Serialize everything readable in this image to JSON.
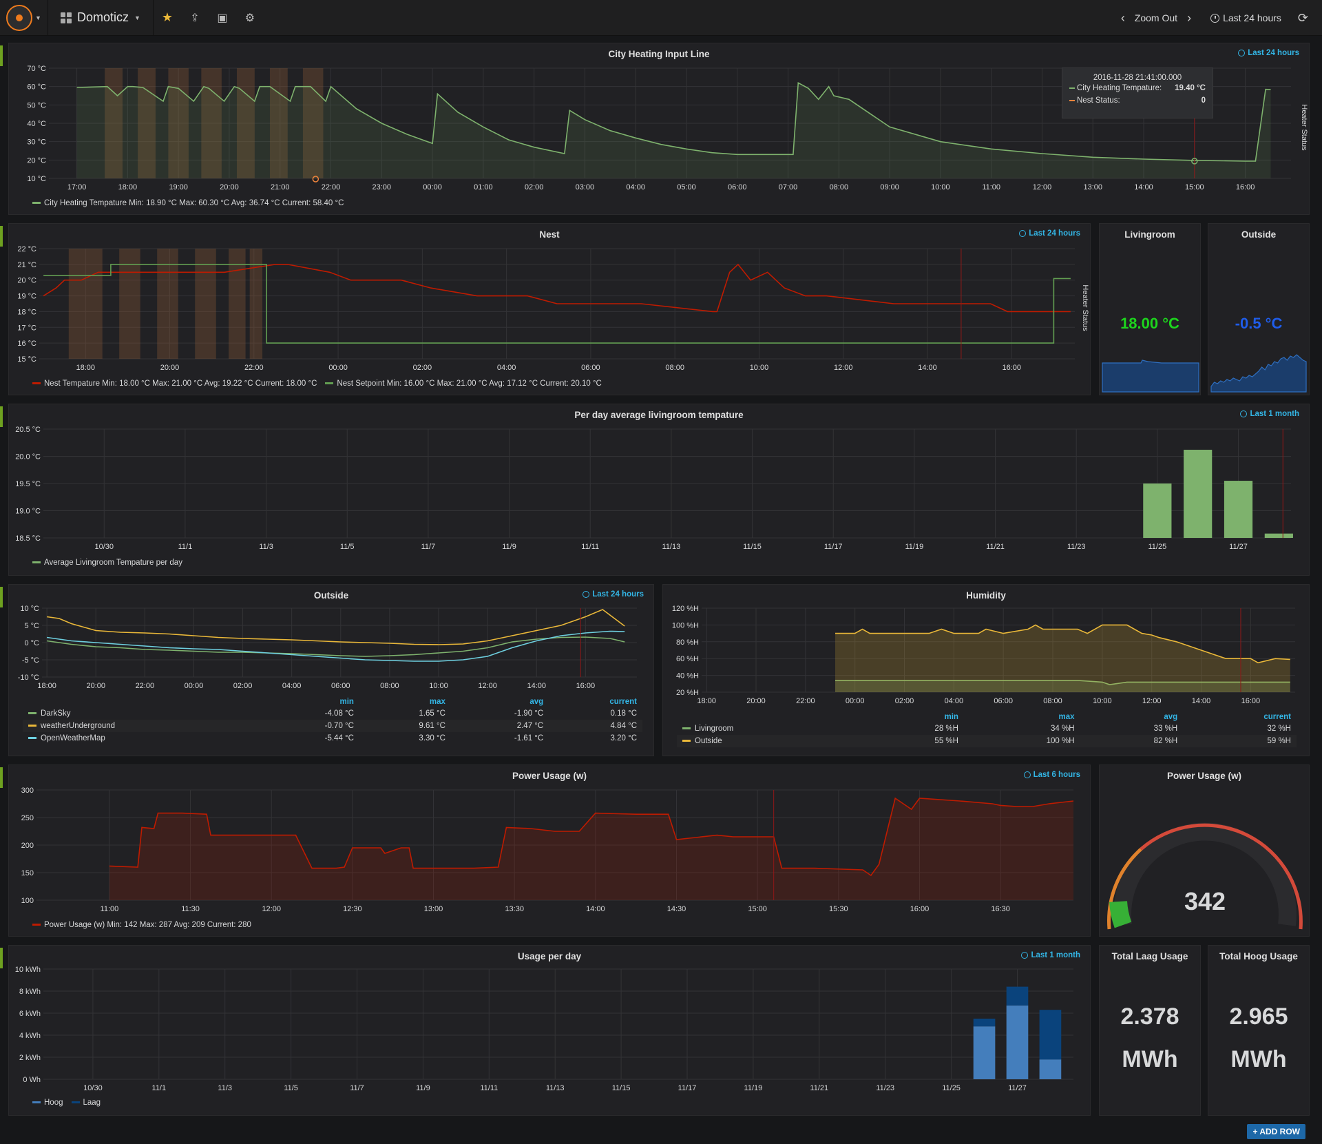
{
  "navbar": {
    "dashboard_title": "Domoticz",
    "zoom_out": "Zoom Out",
    "time_range": "Last 24 hours"
  },
  "panels": {
    "city_heating": {
      "title": "City Heating Input Line",
      "time_info": "Last 24 hours",
      "right_axis_label": "Heater Status",
      "legend": "City Heating Tempature  Min: 18.90 °C  Max: 60.30 °C  Avg: 36.74 °C  Current: 58.40 °C",
      "tooltip": {
        "time": "2016-11-28 21:41:00.000",
        "series1_name": "City Heating Tempature:",
        "series1_value": "19.40 °C",
        "series2_name": "Nest Status:",
        "series2_value": "0"
      }
    },
    "nest": {
      "title": "Nest",
      "time_info": "Last 24 hours",
      "right_axis_label": "Heater Status",
      "legend1": "Nest Tempature  Min: 18.00 °C  Max: 21.00 °C  Avg: 19.22 °C  Current: 18.00 °C",
      "legend2": "Nest Setpoint  Min: 16.00 °C  Max: 21.00 °C  Avg: 17.12 °C  Current: 20.10 °C"
    },
    "livingroom": {
      "title": "Livingroom",
      "value": "18.00 °C",
      "color": "#1dd51d"
    },
    "outside_stat": {
      "title": "Outside",
      "value": "-0.5 °C",
      "color": "#1f5dea"
    },
    "per_day_avg": {
      "title": "Per day average livingroom tempature",
      "time_info": "Last 1 month",
      "legend": "Average Livingroom Tempature per day"
    },
    "outside_graph": {
      "title": "Outside",
      "time_info": "Last 24 hours",
      "headers": [
        "min",
        "max",
        "avg",
        "current"
      ],
      "rows": [
        {
          "name": "DarkSky",
          "color": "#7eb26d",
          "min": "-4.08 °C",
          "max": "1.65 °C",
          "avg": "-1.90 °C",
          "current": "0.18 °C"
        },
        {
          "name": "weatherUnderground",
          "color": "#eab839",
          "min": "-0.70 °C",
          "max": "9.61 °C",
          "avg": "2.47 °C",
          "current": "4.84 °C"
        },
        {
          "name": "OpenWeatherMap",
          "color": "#6ed0e0",
          "min": "-5.44 °C",
          "max": "3.30 °C",
          "avg": "-1.61 °C",
          "current": "3.20 °C"
        }
      ]
    },
    "humidity": {
      "title": "Humidity",
      "headers": [
        "min",
        "max",
        "avg",
        "current"
      ],
      "rows": [
        {
          "name": "Livingroom",
          "color": "#7eb26d",
          "min": "28 %H",
          "max": "34 %H",
          "avg": "33 %H",
          "current": "32 %H"
        },
        {
          "name": "Outside",
          "color": "#eab839",
          "min": "55 %H",
          "max": "100 %H",
          "avg": "82 %H",
          "current": "59 %H"
        }
      ]
    },
    "power": {
      "title": "Power Usage (w)",
      "time_info": "Last 6 hours",
      "legend": "Power Usage (w)  Min: 142  Max: 287  Avg: 209  Current: 280"
    },
    "power_gauge": {
      "title": "Power Usage (w)",
      "value": "342"
    },
    "usage_per_day": {
      "title": "Usage per day",
      "time_info": "Last 1 month",
      "legend1": "Hoog",
      "legend2": "Laag"
    },
    "total_laag": {
      "title": "Total Laag Usage",
      "value": "2.378",
      "unit": "MWh"
    },
    "total_hoog": {
      "title": "Total Hoog Usage",
      "value": "2.965",
      "unit": "MWh"
    }
  },
  "add_row": "+ ADD ROW",
  "chart_data": [
    {
      "type": "line",
      "title": "City Heating Input Line",
      "ylabel": "",
      "yticks": [
        "10 °C",
        "20 °C",
        "30 °C",
        "40 °C",
        "50 °C",
        "60 °C",
        "70 °C"
      ],
      "xticks": [
        "17:00",
        "18:00",
        "19:00",
        "20:00",
        "21:00",
        "22:00",
        "23:00",
        "00:00",
        "01:00",
        "02:00",
        "03:00",
        "04:00",
        "05:00",
        "06:00",
        "07:00",
        "08:00",
        "09:00",
        "10:00",
        "11:00",
        "12:00",
        "13:00",
        "14:00",
        "15:00",
        "16:00"
      ],
      "ylim": [
        10,
        70
      ],
      "series": [
        {
          "name": "City Heating Tempature",
          "color": "#7eb26d",
          "x": [
            0,
            0.6,
            0.8,
            1.0,
            1.1,
            1.3,
            1.7,
            1.8,
            2.0,
            2.3,
            2.5,
            2.6,
            2.9,
            3.1,
            3.2,
            3.5,
            3.6,
            3.8,
            4.2,
            4.3,
            4.4,
            4.6,
            4.9,
            5.0,
            5.5,
            6.0,
            6.5,
            7.0,
            7.1,
            7.5,
            8.0,
            8.5,
            9.0,
            9.6,
            9.7,
            10.0,
            10.5,
            11.0,
            11.5,
            12.0,
            12.5,
            13.0,
            13.5,
            14.1,
            14.2,
            14.4,
            14.6,
            14.8,
            14.9,
            15.2,
            16.0,
            17.0,
            18.0,
            19.0,
            20.0,
            21.0,
            22.0,
            23.0,
            23.2,
            23.4,
            23.5
          ],
          "y": [
            59.5,
            60,
            55,
            60,
            60,
            59.5,
            52,
            60,
            59,
            52,
            60,
            59,
            52,
            60,
            59,
            52,
            60,
            60,
            52,
            60,
            60,
            60,
            52,
            60,
            48,
            40,
            34,
            29,
            56,
            46,
            38,
            31,
            27,
            23.5,
            47,
            42,
            36,
            32,
            28.5,
            26,
            24,
            23,
            23,
            23,
            62,
            59,
            53,
            60,
            55,
            53,
            38,
            30,
            26,
            23.5,
            21.5,
            20.5,
            19.8,
            19.4,
            19.4,
            58.5,
            58.4
          ]
        }
      ]
    },
    {
      "type": "line",
      "title": "Nest",
      "ylabel": "",
      "yticks": [
        "15 °C",
        "16 °C",
        "17 °C",
        "18 °C",
        "19 °C",
        "20 °C",
        "21 °C",
        "22 °C"
      ],
      "xticks": [
        "18:00",
        "20:00",
        "22:00",
        "00:00",
        "02:00",
        "04:00",
        "06:00",
        "08:00",
        "10:00",
        "12:00",
        "14:00",
        "16:00"
      ],
      "ylim": [
        15,
        22
      ],
      "series": [
        {
          "name": "Nest Tempature",
          "color": "#bf1b00",
          "x": [
            0,
            0.3,
            0.5,
            0.9,
            1.3,
            1.8,
            3.0,
            4.3,
            5.5,
            5.8,
            6.8,
            7.3,
            8.5,
            9.2,
            10.3,
            11.5,
            12.2,
            14.2,
            15.9,
            16.0,
            16.3,
            16.5,
            16.8,
            17.2,
            17.6,
            18.1,
            18.6,
            20.2,
            20.6,
            22.5,
            22.9,
            24.4
          ],
          "y": [
            19,
            19.5,
            20,
            20,
            20.5,
            20.5,
            20.5,
            20.5,
            21,
            21,
            20.5,
            20,
            20,
            19.5,
            19,
            19,
            18.5,
            18.5,
            18,
            18,
            20.5,
            21,
            20,
            20.5,
            19.5,
            19,
            19,
            18.5,
            18.5,
            18.5,
            18,
            18
          ]
        },
        {
          "name": "Nest Setpoint",
          "color": "#629e51",
          "x": [
            0,
            1.6,
            1.6,
            5.3,
            5.3,
            24.0,
            24.0,
            24.4
          ],
          "y": [
            20.3,
            20.3,
            21,
            21,
            16,
            16,
            20.1,
            20.1
          ]
        }
      ]
    },
    {
      "type": "bar",
      "title": "Per day average livingroom tempature",
      "xticks": [
        "10/30",
        "11/1",
        "11/3",
        "11/5",
        "11/7",
        "11/9",
        "11/11",
        "11/13",
        "11/15",
        "11/17",
        "11/19",
        "11/21",
        "11/23",
        "11/25",
        "11/27"
      ],
      "yticks": [
        "18.5 °C",
        "19.0 °C",
        "19.5 °C",
        "20.0 °C",
        "20.5 °C"
      ],
      "ylim": [
        18.5,
        20.5
      ],
      "categories": [
        "11/25",
        "11/26",
        "11/27",
        "11/28"
      ],
      "series": [
        {
          "name": "Average Livingroom Tempature per day",
          "color": "#7eb26d",
          "values": [
            19.5,
            20.12,
            19.55,
            18.58
          ]
        }
      ]
    },
    {
      "type": "line",
      "title": "Outside",
      "yticks": [
        "-10 °C",
        "-5 °C",
        "0 °C",
        "5 °C",
        "10 °C"
      ],
      "xticks": [
        "18:00",
        "20:00",
        "22:00",
        "00:00",
        "02:00",
        "04:00",
        "06:00",
        "08:00",
        "10:00",
        "12:00",
        "14:00",
        "16:00"
      ],
      "ylim": [
        -10,
        10
      ],
      "series": [
        {
          "name": "DarkSky",
          "color": "#7eb26d",
          "x": [
            0,
            1,
            2,
            3,
            4,
            5,
            6,
            7,
            8,
            9,
            10,
            11,
            12,
            13,
            14,
            15,
            16,
            17,
            18,
            19,
            20,
            21,
            22,
            23,
            23.6
          ],
          "y": [
            0.5,
            -0.5,
            -1.2,
            -1.5,
            -2.0,
            -2.2,
            -2.5,
            -2.8,
            -2.8,
            -3.0,
            -3.2,
            -3.5,
            -3.8,
            -4.0,
            -3.8,
            -3.5,
            -3.0,
            -2.5,
            -1.5,
            0.2,
            1.0,
            1.5,
            1.6,
            1.2,
            0.2
          ]
        },
        {
          "name": "weatherUnderground",
          "color": "#eab839",
          "x": [
            0,
            0.5,
            1,
            1.5,
            2,
            3,
            4,
            5,
            6,
            7,
            8,
            9,
            10,
            11,
            12,
            13,
            14,
            15,
            16,
            17,
            18,
            19,
            20,
            21,
            22,
            22.7,
            23.6
          ],
          "y": [
            7.5,
            7.0,
            5.5,
            4.5,
            3.5,
            3.0,
            2.8,
            2.5,
            2.0,
            1.5,
            1.2,
            1.0,
            0.8,
            0.5,
            0.2,
            0.0,
            -0.2,
            -0.5,
            -0.6,
            -0.4,
            0.5,
            2.0,
            3.5,
            5.0,
            7.5,
            9.6,
            4.8
          ]
        },
        {
          "name": "OpenWeatherMap",
          "color": "#6ed0e0",
          "x": [
            0,
            1,
            2,
            3,
            4,
            5,
            6,
            7,
            8,
            9,
            10,
            11,
            12,
            13,
            14,
            15,
            16,
            17,
            18,
            19,
            20,
            21,
            22,
            23,
            23.6
          ],
          "y": [
            1.5,
            0.5,
            0.0,
            -0.5,
            -1.0,
            -1.5,
            -1.8,
            -2.0,
            -2.5,
            -3.0,
            -3.5,
            -4.0,
            -4.5,
            -5.0,
            -5.2,
            -5.4,
            -5.4,
            -5.0,
            -4.0,
            -1.5,
            0.5,
            2.0,
            2.8,
            3.3,
            3.2
          ]
        }
      ]
    },
    {
      "type": "area",
      "title": "Humidity",
      "yticks": [
        "20 %H",
        "40 %H",
        "60 %H",
        "80 %H",
        "100 %H",
        "120 %H"
      ],
      "xticks": [
        "18:00",
        "20:00",
        "22:00",
        "00:00",
        "02:00",
        "04:00",
        "06:00",
        "08:00",
        "10:00",
        "12:00",
        "14:00",
        "16:00"
      ],
      "ylim": [
        20,
        120
      ],
      "series": [
        {
          "name": "Livingroom",
          "color": "#7eb26d",
          "x": [
            5.2,
            8,
            10,
            12,
            15,
            16.0,
            16.3,
            17.0,
            18,
            20,
            22,
            23.6
          ],
          "y": [
            34,
            34,
            34,
            34,
            34,
            32,
            29,
            32,
            32,
            32,
            32,
            32
          ]
        },
        {
          "name": "Outside",
          "color": "#eab839",
          "x": [
            5.2,
            6,
            6.3,
            6.6,
            8,
            9,
            9.5,
            10,
            11,
            11.3,
            12,
            13,
            13.3,
            13.6,
            15,
            15.4,
            16,
            17,
            17.3,
            17.6,
            18,
            18.3,
            19,
            19.5,
            20,
            21,
            22,
            22.3,
            23,
            23.6
          ],
          "y": [
            90,
            90,
            95,
            90,
            90,
            90,
            95,
            90,
            90,
            95,
            90,
            95,
            100,
            95,
            95,
            90,
            100,
            100,
            95,
            90,
            88,
            85,
            80,
            75,
            70,
            60,
            60,
            55,
            60,
            59
          ]
        }
      ]
    },
    {
      "type": "area",
      "title": "Power Usage (w)",
      "yticks": [
        "100",
        "150",
        "200",
        "250",
        "300"
      ],
      "xticks": [
        "11:00",
        "11:30",
        "12:00",
        "12:30",
        "13:00",
        "13:30",
        "14:00",
        "14:30",
        "15:00",
        "15:30",
        "16:00",
        "16:30"
      ],
      "ylim": [
        100,
        300
      ],
      "series": [
        {
          "name": "Power Usage (w)",
          "color": "#bf1b00",
          "x": [
            0,
            0.35,
            0.4,
            0.55,
            0.6,
            0.9,
            1.2,
            1.25,
            1.8,
            1.9,
            2.0,
            2.2,
            2.3,
            2.5,
            2.6,
            2.8,
            2.9,
            3.0,
            3.2,
            3.35,
            3.4,
            3.6,
            3.7,
            3.75,
            4.0,
            4.5,
            4.8,
            4.9,
            5.2,
            5.5,
            5.8,
            6.0,
            6.5,
            6.9,
            7.0,
            7.5,
            7.7,
            7.9,
            8.2,
            8.3,
            8.6,
            8.7,
            9.3,
            9.4,
            9.5,
            9.7,
            9.9,
            10.0,
            10.5,
            10.9,
            11.0,
            11.2,
            11.4,
            11.6,
            11.9
          ],
          "y": [
            162,
            160,
            232,
            230,
            258,
            258,
            256,
            218,
            218,
            218,
            218,
            218,
            218,
            158,
            158,
            158,
            160,
            195,
            195,
            195,
            185,
            195,
            195,
            158,
            158,
            158,
            160,
            232,
            230,
            225,
            225,
            258,
            256,
            256,
            210,
            218,
            215,
            215,
            215,
            158,
            158,
            158,
            155,
            145,
            165,
            285,
            265,
            285,
            280,
            275,
            272,
            270,
            270,
            275,
            280
          ]
        }
      ]
    },
    {
      "type": "bar",
      "title": "Usage per day",
      "yticks": [
        "0 Wh",
        "2 kWh",
        "4 kWh",
        "6 kWh",
        "8 kWh",
        "10 kWh"
      ],
      "xticks": [
        "10/30",
        "11/1",
        "11/3",
        "11/5",
        "11/7",
        "11/9",
        "11/11",
        "11/13",
        "11/15",
        "11/17",
        "11/19",
        "11/21",
        "11/23",
        "11/25",
        "11/27"
      ],
      "ylim": [
        0,
        10
      ],
      "categories": [
        "11/26",
        "11/27",
        "11/28"
      ],
      "series": [
        {
          "name": "Hoog",
          "color": "#447ebc",
          "values": [
            4.8,
            6.7,
            1.8
          ]
        },
        {
          "name": "Laag",
          "color": "#0a437c",
          "values": [
            0.7,
            1.7,
            4.5
          ]
        }
      ]
    }
  ]
}
